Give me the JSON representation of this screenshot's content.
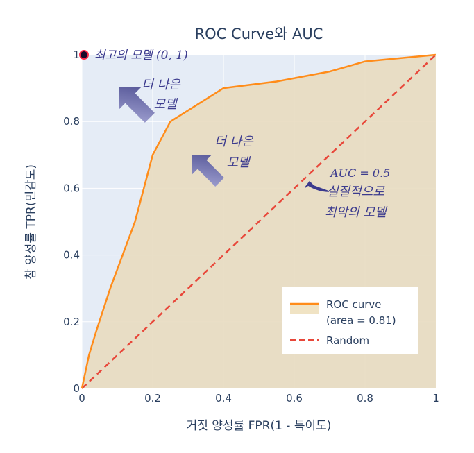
{
  "chart_data": {
    "type": "area",
    "title": "ROC Curve와 AUC",
    "xlabel": "거짓 양성률 FPR(1 - 특이도)",
    "ylabel": "참 양성률 TPR(민감도)",
    "xlim": [
      0,
      1
    ],
    "ylim": [
      0,
      1
    ],
    "x_ticks": [
      "0",
      "0.2",
      "0.4",
      "0.6",
      "0.8",
      "1"
    ],
    "y_ticks": [
      "0",
      "0.2",
      "0.4",
      "0.6",
      "0.8",
      "1"
    ],
    "grid": true,
    "legend_position": "bottom-right",
    "series": [
      {
        "name": "ROC curve (area = 0.81)",
        "legend_lines": [
          "ROC curve",
          "(area = 0.81)"
        ],
        "color": "#ff8c1a",
        "fill": "#e8dcc0",
        "x": [
          0,
          0.02,
          0.04,
          0.08,
          0.15,
          0.2,
          0.25,
          0.4,
          0.55,
          0.7,
          0.8,
          1.0
        ],
        "y": [
          0,
          0.1,
          0.17,
          0.3,
          0.5,
          0.7,
          0.8,
          0.9,
          0.92,
          0.95,
          0.98,
          1.0
        ]
      },
      {
        "name": "Random",
        "color": "#e8473a",
        "dash": true,
        "x": [
          0,
          1
        ],
        "y": [
          0,
          1
        ]
      }
    ],
    "best_point": {
      "x": 0,
      "y": 1,
      "label": "최고의 모델 (0, 1)"
    },
    "annotations": [
      {
        "lines": [
          "더 나은",
          "모델"
        ]
      },
      {
        "lines": [
          "더 나은",
          "모델"
        ]
      },
      {
        "lines": [
          "AUC = 0.5",
          "실질적으로",
          "최악의 모델"
        ]
      }
    ]
  },
  "colors": {
    "plot_bg": "#e5ecf6",
    "grid": "#ffffff",
    "arrow": "#6e6fae"
  }
}
